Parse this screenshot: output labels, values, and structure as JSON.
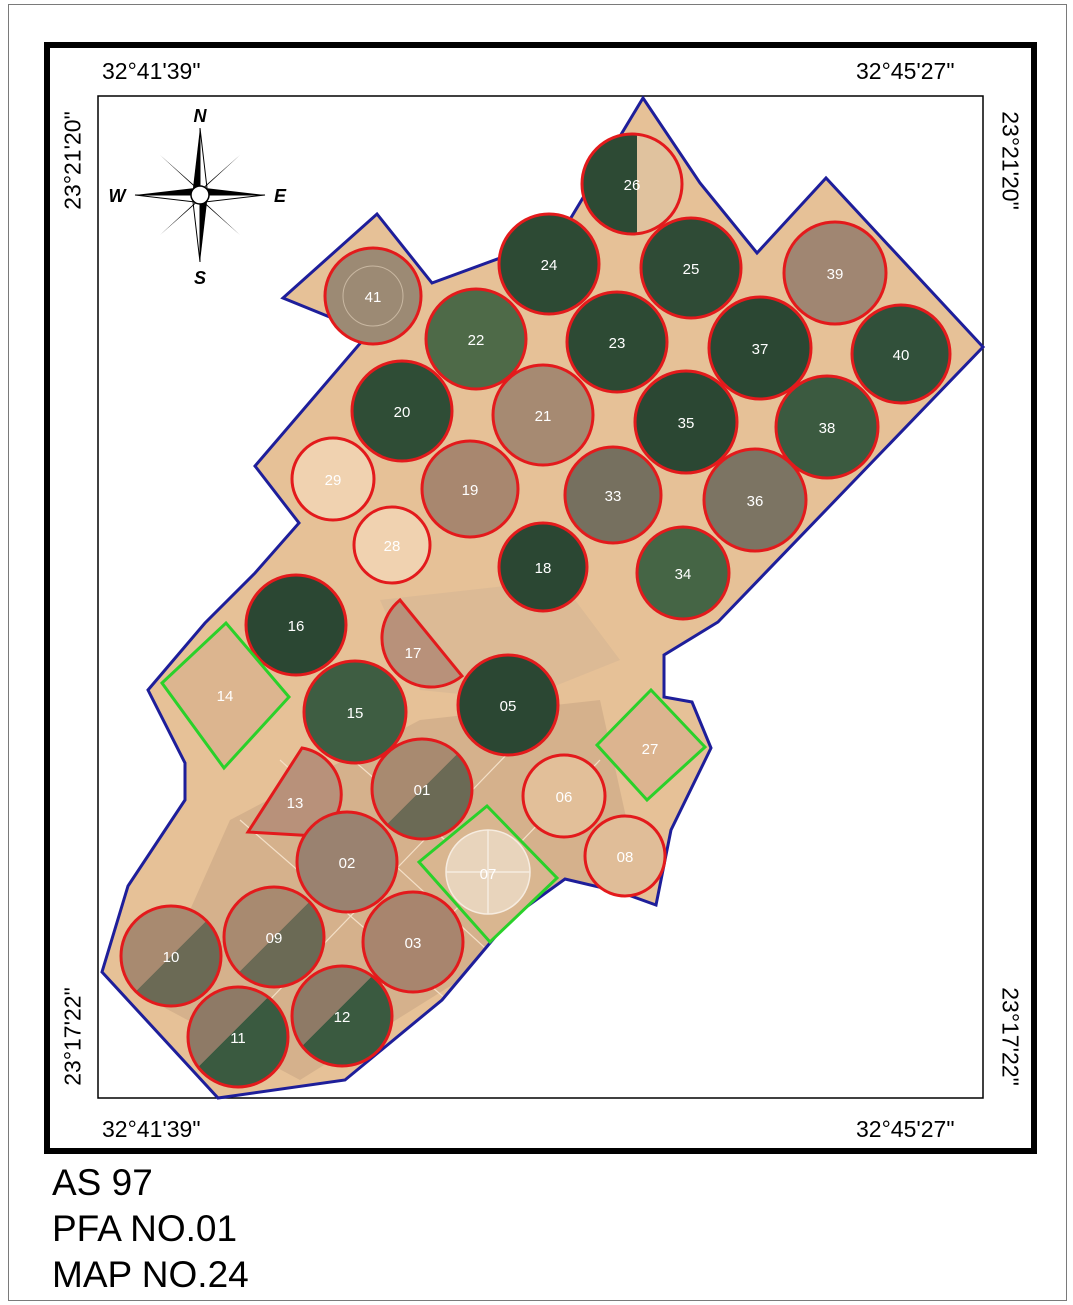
{
  "map": {
    "coordinates": {
      "top_left_lon": "32°41'39\"",
      "top_right_lon": "32°45'27\"",
      "bottom_left_lon": "32°41'39\"",
      "bottom_right_lon": "32°45'27\"",
      "left_top_lat": "23°21'20\"",
      "left_bottom_lat": "23°17'22\"",
      "right_top_lat": "23°21'20\"",
      "right_bottom_lat": "23°17'22\""
    },
    "compass": {
      "n": "N",
      "s": "S",
      "e": "E",
      "w": "W"
    },
    "colors": {
      "boundary": "#1e1e9a",
      "circle_outline": "#e31a1c",
      "square_outline": "#2ad12a",
      "sand": "#e8c49a",
      "dark_crop": "#2d4a34",
      "brown_field": "#a88a70",
      "fallow_field": "#f0d2b0"
    },
    "fields": [
      {
        "id": "26",
        "shape": "circle",
        "fill": "mixed"
      },
      {
        "id": "24",
        "shape": "circle",
        "fill": "dark"
      },
      {
        "id": "25",
        "shape": "circle",
        "fill": "dark"
      },
      {
        "id": "39",
        "shape": "circle",
        "fill": "brown"
      },
      {
        "id": "41",
        "shape": "circle",
        "fill": "brown"
      },
      {
        "id": "22",
        "shape": "circle",
        "fill": "green"
      },
      {
        "id": "23",
        "shape": "circle",
        "fill": "dark"
      },
      {
        "id": "37",
        "shape": "circle",
        "fill": "dark"
      },
      {
        "id": "40",
        "shape": "circle",
        "fill": "dark"
      },
      {
        "id": "20",
        "shape": "circle",
        "fill": "dark"
      },
      {
        "id": "21",
        "shape": "circle",
        "fill": "brown"
      },
      {
        "id": "35",
        "shape": "circle",
        "fill": "dark"
      },
      {
        "id": "38",
        "shape": "circle",
        "fill": "green"
      },
      {
        "id": "29",
        "shape": "circle",
        "fill": "fallow"
      },
      {
        "id": "19",
        "shape": "circle",
        "fill": "brown"
      },
      {
        "id": "33",
        "shape": "circle",
        "fill": "grey"
      },
      {
        "id": "36",
        "shape": "circle",
        "fill": "grey"
      },
      {
        "id": "28",
        "shape": "circle",
        "fill": "fallow"
      },
      {
        "id": "18",
        "shape": "circle",
        "fill": "dark"
      },
      {
        "id": "34",
        "shape": "circle",
        "fill": "green"
      },
      {
        "id": "16",
        "shape": "circle",
        "fill": "dark"
      },
      {
        "id": "17",
        "shape": "half-circle",
        "fill": "brown"
      },
      {
        "id": "14",
        "shape": "square",
        "fill": "sand"
      },
      {
        "id": "15",
        "shape": "circle",
        "fill": "green"
      },
      {
        "id": "05",
        "shape": "circle",
        "fill": "dark"
      },
      {
        "id": "27",
        "shape": "square",
        "fill": "sand"
      },
      {
        "id": "13",
        "shape": "half-circle",
        "fill": "brown"
      },
      {
        "id": "01",
        "shape": "circle",
        "fill": "mixed-brown"
      },
      {
        "id": "06",
        "shape": "circle",
        "fill": "sand"
      },
      {
        "id": "02",
        "shape": "circle",
        "fill": "brown"
      },
      {
        "id": "07",
        "shape": "square-circle",
        "fill": "light"
      },
      {
        "id": "08",
        "shape": "circle",
        "fill": "sand"
      },
      {
        "id": "10",
        "shape": "circle",
        "fill": "mixed-brown"
      },
      {
        "id": "09",
        "shape": "circle",
        "fill": "mixed-brown"
      },
      {
        "id": "03",
        "shape": "circle",
        "fill": "brown"
      },
      {
        "id": "11",
        "shape": "circle",
        "fill": "mixed-green"
      },
      {
        "id": "12",
        "shape": "circle",
        "fill": "mixed-green"
      }
    ]
  },
  "info": {
    "line1": "AS 97",
    "line2": "PFA NO.01",
    "line3": "MAP NO.24"
  }
}
